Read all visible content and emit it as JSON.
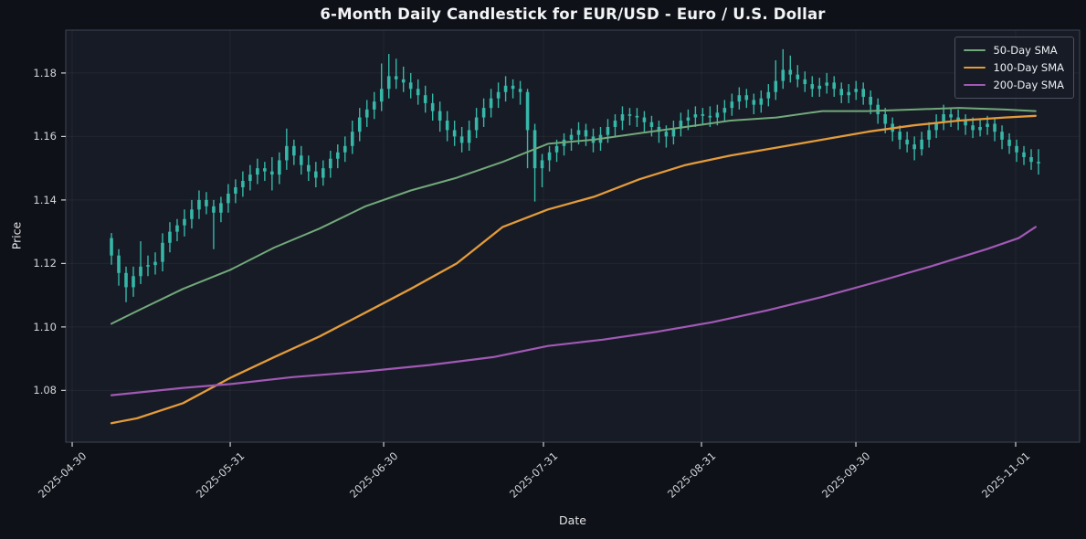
{
  "chart_data": {
    "type": "candlestick",
    "title": "6-Month Daily Candlestick for EUR/USD - Euro / U.S. Dollar",
    "xlabel": "Date",
    "ylabel": "Price",
    "ylim": [
      1.0637,
      1.1935
    ],
    "xlim_index": [
      -6.26,
      132.63
    ],
    "grid": true,
    "legend_position": "upper right",
    "y_ticks": [
      {
        "label": "1.08",
        "value": 1.08
      },
      {
        "label": "1.10",
        "value": 1.1
      },
      {
        "label": "1.12",
        "value": 1.12
      },
      {
        "label": "1.14",
        "value": 1.14
      },
      {
        "label": "1.16",
        "value": 1.16
      },
      {
        "label": "1.18",
        "value": 1.18
      }
    ],
    "x_ticks": [
      {
        "label": "2025-04-30",
        "i": -5.38
      },
      {
        "label": "2025-05-31",
        "i": 16.27
      },
      {
        "label": "2025-06-30",
        "i": 37.29
      },
      {
        "label": "2025-07-31",
        "i": 59.18
      },
      {
        "label": "2025-08-31",
        "i": 80.83
      },
      {
        "label": "2025-09-30",
        "i": 101.98
      },
      {
        "label": "2025-11-01",
        "i": 123.87
      }
    ],
    "colors": {
      "figure_bg": "#0e1118",
      "plot_bg": "#171b25",
      "grid": "rgba(255,255,255,0.05)",
      "spine": "#3f4654",
      "tick": "#cfd0d4",
      "candle": "#36b7a8"
    },
    "series": [
      {
        "name": "50-Day SMA",
        "color": "#72a97b",
        "width": 2.0,
        "points": [
          [
            0,
            1.101
          ],
          [
            3.5,
            1.105
          ],
          [
            9.8,
            1.112
          ],
          [
            16.3,
            1.118
          ],
          [
            22.3,
            1.125
          ],
          [
            28.5,
            1.131
          ],
          [
            34.8,
            1.138
          ],
          [
            41,
            1.143
          ],
          [
            47.3,
            1.147
          ],
          [
            53.6,
            1.152
          ],
          [
            59.8,
            1.1577
          ],
          [
            66.1,
            1.159
          ],
          [
            72.3,
            1.161
          ],
          [
            78.6,
            1.163
          ],
          [
            84.8,
            1.165
          ],
          [
            91.1,
            1.166
          ],
          [
            97.4,
            1.168
          ],
          [
            103.6,
            1.168
          ],
          [
            109.9,
            1.1685
          ],
          [
            116.1,
            1.169
          ],
          [
            122.4,
            1.1685
          ],
          [
            126.6,
            1.168
          ]
        ]
      },
      {
        "name": "100-Day SMA",
        "color": "#e39b3b",
        "width": 2.3,
        "points": [
          [
            0,
            1.0697
          ],
          [
            3.5,
            1.0712
          ],
          [
            9.8,
            1.076
          ],
          [
            16.3,
            1.084
          ],
          [
            22.3,
            1.0905
          ],
          [
            28.5,
            1.097
          ],
          [
            34.8,
            1.1045
          ],
          [
            41,
            1.112
          ],
          [
            47.3,
            1.12
          ],
          [
            53.6,
            1.1315
          ],
          [
            59.8,
            1.137
          ],
          [
            66.1,
            1.141
          ],
          [
            72.3,
            1.1465
          ],
          [
            78.6,
            1.151
          ],
          [
            84.8,
            1.154
          ],
          [
            91.1,
            1.1565
          ],
          [
            97.4,
            1.159
          ],
          [
            103.6,
            1.1615
          ],
          [
            109.9,
            1.1635
          ],
          [
            116.1,
            1.165
          ],
          [
            122.4,
            1.166
          ],
          [
            126.6,
            1.1665
          ]
        ]
      },
      {
        "name": "200-Day SMA",
        "color": "#a159b5",
        "width": 2.2,
        "points": [
          [
            0,
            1.0785
          ],
          [
            9.8,
            1.0808
          ],
          [
            16.3,
            1.082
          ],
          [
            24.8,
            1.0842
          ],
          [
            34.8,
            1.086
          ],
          [
            43.5,
            1.088
          ],
          [
            52.3,
            1.0905
          ],
          [
            59.8,
            1.094
          ],
          [
            67.3,
            1.096
          ],
          [
            74.8,
            1.0985
          ],
          [
            82.3,
            1.1015
          ],
          [
            89.8,
            1.1052
          ],
          [
            97.4,
            1.1095
          ],
          [
            104.9,
            1.1142
          ],
          [
            112.4,
            1.1192
          ],
          [
            119.9,
            1.1245
          ],
          [
            124.3,
            1.128
          ],
          [
            126.6,
            1.1315
          ]
        ]
      }
    ],
    "candles": [
      [
        1.128,
        1.1296,
        1.1196,
        1.1225
      ],
      [
        1.1225,
        1.1245,
        1.113,
        1.117
      ],
      [
        1.117,
        1.119,
        1.1078,
        1.1125
      ],
      [
        1.1125,
        1.119,
        1.1095,
        1.116
      ],
      [
        1.116,
        1.127,
        1.1135,
        1.119
      ],
      [
        1.119,
        1.1225,
        1.116,
        1.1195
      ],
      [
        1.1195,
        1.1235,
        1.1165,
        1.1205
      ],
      [
        1.1205,
        1.1295,
        1.1175,
        1.1265
      ],
      [
        1.1265,
        1.133,
        1.1235,
        1.13
      ],
      [
        1.13,
        1.134,
        1.127,
        1.132
      ],
      [
        1.132,
        1.137,
        1.1285,
        1.134
      ],
      [
        1.134,
        1.14,
        1.131,
        1.137
      ],
      [
        1.137,
        1.143,
        1.134,
        1.14
      ],
      [
        1.14,
        1.1425,
        1.1355,
        1.138
      ],
      [
        1.138,
        1.14,
        1.1245,
        1.136
      ],
      [
        1.136,
        1.141,
        1.133,
        1.139
      ],
      [
        1.139,
        1.145,
        1.136,
        1.142
      ],
      [
        1.142,
        1.1465,
        1.139,
        1.144
      ],
      [
        1.144,
        1.149,
        1.141,
        1.146
      ],
      [
        1.146,
        1.151,
        1.143,
        1.148
      ],
      [
        1.148,
        1.153,
        1.145,
        1.15
      ],
      [
        1.15,
        1.152,
        1.146,
        1.149
      ],
      [
        1.149,
        1.1535,
        1.143,
        1.148
      ],
      [
        1.148,
        1.155,
        1.145,
        1.1525
      ],
      [
        1.1525,
        1.1625,
        1.1495,
        1.157
      ],
      [
        1.157,
        1.159,
        1.151,
        1.154
      ],
      [
        1.154,
        1.157,
        1.148,
        1.151
      ],
      [
        1.151,
        1.154,
        1.146,
        1.149
      ],
      [
        1.149,
        1.152,
        1.144,
        1.147
      ],
      [
        1.147,
        1.1525,
        1.1445,
        1.15
      ],
      [
        1.15,
        1.1555,
        1.147,
        1.153
      ],
      [
        1.153,
        1.1575,
        1.15,
        1.155
      ],
      [
        1.155,
        1.16,
        1.152,
        1.157
      ],
      [
        1.157,
        1.165,
        1.1545,
        1.1615
      ],
      [
        1.1615,
        1.169,
        1.1585,
        1.166
      ],
      [
        1.166,
        1.1715,
        1.163,
        1.1685
      ],
      [
        1.1685,
        1.174,
        1.1655,
        1.171
      ],
      [
        1.171,
        1.183,
        1.168,
        1.175
      ],
      [
        1.175,
        1.186,
        1.172,
        1.179
      ],
      [
        1.179,
        1.1845,
        1.175,
        1.178
      ],
      [
        1.178,
        1.182,
        1.174,
        1.177
      ],
      [
        1.177,
        1.18,
        1.172,
        1.175
      ],
      [
        1.175,
        1.178,
        1.17,
        1.173
      ],
      [
        1.173,
        1.176,
        1.1675,
        1.1705
      ],
      [
        1.1705,
        1.1735,
        1.165,
        1.168
      ],
      [
        1.168,
        1.171,
        1.1615,
        1.165
      ],
      [
        1.165,
        1.168,
        1.1585,
        1.162
      ],
      [
        1.162,
        1.165,
        1.157,
        1.16
      ],
      [
        1.16,
        1.163,
        1.155,
        1.158
      ],
      [
        1.158,
        1.165,
        1.1555,
        1.162
      ],
      [
        1.162,
        1.169,
        1.1595,
        1.166
      ],
      [
        1.166,
        1.172,
        1.163,
        1.169
      ],
      [
        1.169,
        1.175,
        1.166,
        1.172
      ],
      [
        1.172,
        1.177,
        1.169,
        1.174
      ],
      [
        1.174,
        1.179,
        1.171,
        1.176
      ],
      [
        1.176,
        1.178,
        1.172,
        1.175
      ],
      [
        1.175,
        1.1775,
        1.17,
        1.174
      ],
      [
        1.174,
        1.175,
        1.15,
        1.162
      ],
      [
        1.162,
        1.164,
        1.1395,
        1.15
      ],
      [
        1.15,
        1.1545,
        1.144,
        1.1525
      ],
      [
        1.1525,
        1.157,
        1.149,
        1.155
      ],
      [
        1.155,
        1.159,
        1.152,
        1.157
      ],
      [
        1.157,
        1.161,
        1.154,
        1.159
      ],
      [
        1.159,
        1.1625,
        1.1555,
        1.1605
      ],
      [
        1.1605,
        1.1645,
        1.1575,
        1.162
      ],
      [
        1.162,
        1.164,
        1.157,
        1.16
      ],
      [
        1.16,
        1.1625,
        1.155,
        1.158
      ],
      [
        1.158,
        1.163,
        1.1555,
        1.1605
      ],
      [
        1.1605,
        1.1655,
        1.158,
        1.163
      ],
      [
        1.163,
        1.167,
        1.16,
        1.165
      ],
      [
        1.165,
        1.1695,
        1.162,
        1.167
      ],
      [
        1.167,
        1.169,
        1.1635,
        1.1665
      ],
      [
        1.1665,
        1.169,
        1.163,
        1.166
      ],
      [
        1.166,
        1.168,
        1.1615,
        1.1645
      ],
      [
        1.1645,
        1.1665,
        1.16,
        1.163
      ],
      [
        1.163,
        1.165,
        1.158,
        1.1615
      ],
      [
        1.1615,
        1.1635,
        1.1565,
        1.16
      ],
      [
        1.16,
        1.165,
        1.1575,
        1.1625
      ],
      [
        1.1625,
        1.1675,
        1.16,
        1.165
      ],
      [
        1.165,
        1.1685,
        1.162,
        1.166
      ],
      [
        1.166,
        1.1695,
        1.163,
        1.167
      ],
      [
        1.167,
        1.169,
        1.1635,
        1.1665
      ],
      [
        1.1665,
        1.1695,
        1.163,
        1.166
      ],
      [
        1.166,
        1.17,
        1.1635,
        1.1675
      ],
      [
        1.1675,
        1.1715,
        1.165,
        1.169
      ],
      [
        1.169,
        1.1735,
        1.1665,
        1.171
      ],
      [
        1.171,
        1.1755,
        1.1685,
        1.173
      ],
      [
        1.173,
        1.175,
        1.169,
        1.1715
      ],
      [
        1.1715,
        1.1735,
        1.167,
        1.17
      ],
      [
        1.17,
        1.1745,
        1.1675,
        1.172
      ],
      [
        1.172,
        1.1765,
        1.1695,
        1.174
      ],
      [
        1.174,
        1.184,
        1.1715,
        1.1775
      ],
      [
        1.1775,
        1.1875,
        1.175,
        1.181
      ],
      [
        1.181,
        1.1855,
        1.177,
        1.1795
      ],
      [
        1.1795,
        1.1825,
        1.1755,
        1.178
      ],
      [
        1.178,
        1.1805,
        1.174,
        1.1765
      ],
      [
        1.1765,
        1.179,
        1.1725,
        1.175
      ],
      [
        1.175,
        1.1785,
        1.1725,
        1.176
      ],
      [
        1.176,
        1.18,
        1.1735,
        1.177
      ],
      [
        1.177,
        1.179,
        1.1725,
        1.175
      ],
      [
        1.175,
        1.177,
        1.1705,
        1.173
      ],
      [
        1.173,
        1.1765,
        1.1705,
        1.174
      ],
      [
        1.174,
        1.1775,
        1.1715,
        1.175
      ],
      [
        1.175,
        1.177,
        1.17,
        1.1725
      ],
      [
        1.1725,
        1.1745,
        1.167,
        1.17
      ],
      [
        1.17,
        1.172,
        1.164,
        1.167
      ],
      [
        1.167,
        1.169,
        1.161,
        1.164
      ],
      [
        1.164,
        1.166,
        1.1585,
        1.1615
      ],
      [
        1.1615,
        1.1635,
        1.156,
        1.159
      ],
      [
        1.159,
        1.1615,
        1.155,
        1.1575
      ],
      [
        1.1575,
        1.16,
        1.1525,
        1.156
      ],
      [
        1.156,
        1.1615,
        1.154,
        1.159
      ],
      [
        1.159,
        1.1645,
        1.1565,
        1.162
      ],
      [
        1.162,
        1.167,
        1.1595,
        1.1645
      ],
      [
        1.1645,
        1.17,
        1.162,
        1.167
      ],
      [
        1.167,
        1.169,
        1.163,
        1.166
      ],
      [
        1.166,
        1.1685,
        1.162,
        1.165
      ],
      [
        1.165,
        1.167,
        1.1605,
        1.1635
      ],
      [
        1.1635,
        1.166,
        1.1595,
        1.162
      ],
      [
        1.162,
        1.1655,
        1.16,
        1.163
      ],
      [
        1.163,
        1.1665,
        1.1605,
        1.164
      ],
      [
        1.164,
        1.1655,
        1.1585,
        1.1615
      ],
      [
        1.1615,
        1.1635,
        1.156,
        1.159
      ],
      [
        1.159,
        1.161,
        1.1545,
        1.157
      ],
      [
        1.157,
        1.159,
        1.152,
        1.155
      ],
      [
        1.155,
        1.157,
        1.151,
        1.1535
      ],
      [
        1.1535,
        1.156,
        1.1495,
        1.152
      ],
      [
        1.152,
        1.156,
        1.148,
        1.1515
      ]
    ]
  }
}
